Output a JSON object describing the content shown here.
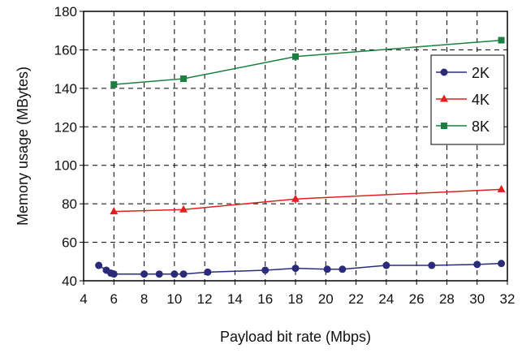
{
  "chart_data": {
    "type": "line",
    "title": "",
    "xlabel": "Payload bit rate (Mbps)",
    "ylabel": "Memory usage (MBytes)",
    "xlim": [
      4,
      32
    ],
    "ylim": [
      40,
      180
    ],
    "xticks": [
      4,
      6,
      8,
      10,
      12,
      14,
      16,
      18,
      20,
      22,
      24,
      26,
      28,
      30,
      32
    ],
    "yticks": [
      40,
      60,
      80,
      100,
      120,
      140,
      160,
      180
    ],
    "grid": true,
    "legend_position": "top-right",
    "series": [
      {
        "name": "2K",
        "color": "#2b2b7a",
        "marker": "circle",
        "points": [
          [
            5,
            48
          ],
          [
            5.5,
            45.5
          ],
          [
            5.8,
            44
          ],
          [
            6,
            43.5
          ],
          [
            8,
            43.5
          ],
          [
            9,
            43.5
          ],
          [
            10,
            43.5
          ],
          [
            10.6,
            43.5
          ],
          [
            12.2,
            44.5
          ],
          [
            16,
            45.5
          ],
          [
            18,
            46.5
          ],
          [
            20.1,
            46
          ],
          [
            21.1,
            46
          ],
          [
            24,
            48
          ],
          [
            27,
            48
          ],
          [
            30,
            48.5
          ],
          [
            31.6,
            49
          ]
        ]
      },
      {
        "name": "4K",
        "color": "#e02020",
        "marker": "triangle",
        "points": [
          [
            6,
            76
          ],
          [
            10.6,
            77
          ],
          [
            18,
            82.5
          ],
          [
            31.6,
            87.5
          ]
        ]
      },
      {
        "name": "8K",
        "color": "#1a8040",
        "marker": "square",
        "points": [
          [
            6,
            142
          ],
          [
            10.6,
            145
          ],
          [
            18,
            156.5
          ],
          [
            31.6,
            165
          ]
        ]
      }
    ]
  }
}
